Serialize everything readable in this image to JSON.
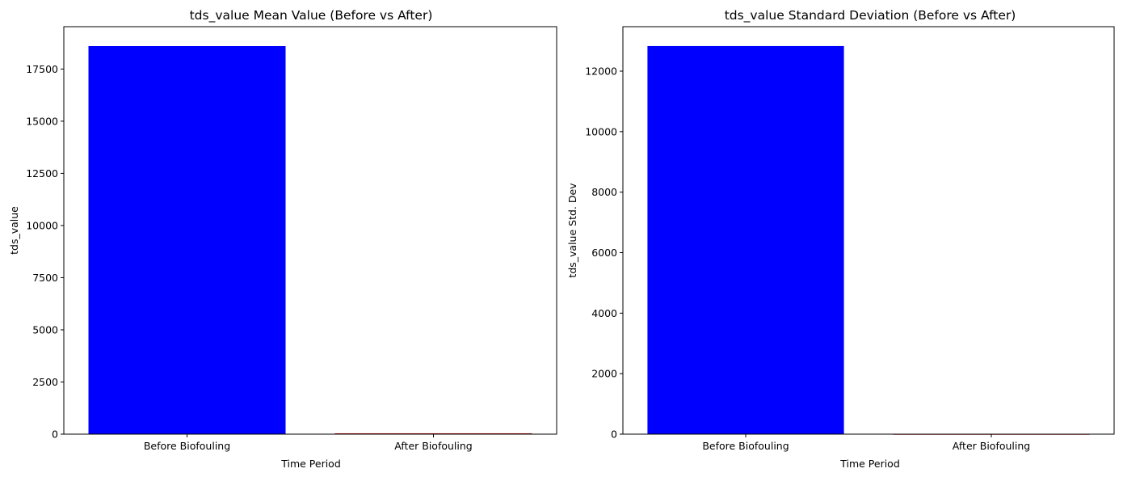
{
  "chart_data": [
    {
      "type": "bar",
      "title": "tds_value Mean Value (Before vs After)",
      "xlabel": "Time Period",
      "ylabel": "tds_value",
      "categories": [
        "Before Biofouling",
        "After Biofouling"
      ],
      "values": [
        18600,
        40
      ],
      "colors": [
        "#0000ff",
        "#c00000"
      ],
      "ylim": [
        0,
        19530
      ],
      "yticks": [
        0,
        2500,
        5000,
        7500,
        10000,
        12500,
        15000,
        17500
      ],
      "grid": false
    },
    {
      "type": "bar",
      "title": "tds_value Standard Deviation (Before vs After)",
      "xlabel": "Time Period",
      "ylabel": "tds_value Std. Dev",
      "categories": [
        "Before Biofouling",
        "After Biofouling"
      ],
      "values": [
        12830,
        8
      ],
      "colors": [
        "#0000ff",
        "#c00000"
      ],
      "ylim": [
        0,
        13470
      ],
      "yticks": [
        0,
        2000,
        4000,
        6000,
        8000,
        10000,
        12000
      ],
      "grid": false
    }
  ]
}
